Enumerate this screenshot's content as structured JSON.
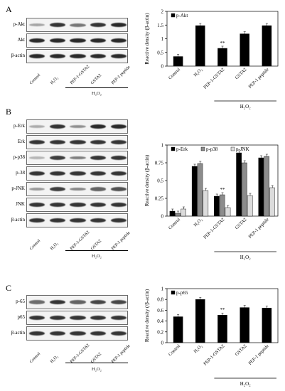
{
  "panels": [
    {
      "letter": "A",
      "blots": [
        {
          "label": "p-Akt",
          "intensity": [
            0.25,
            0.85,
            0.5,
            0.85,
            0.9
          ]
        },
        {
          "label": "Akt",
          "intensity": [
            0.9,
            0.9,
            0.9,
            0.9,
            0.9
          ]
        },
        {
          "label": "β-actin",
          "intensity": [
            0.9,
            0.9,
            0.9,
            0.9,
            0.9
          ]
        }
      ],
      "lanes": [
        "Control",
        "H₂O₂",
        "PEP-1-GSTA2",
        "GSTA2",
        "PEP-1 peptide"
      ],
      "treatment": "H₂O₂"
    },
    {
      "letter": "B",
      "blots": [
        {
          "label": "p-Erk",
          "intensity": [
            0.2,
            0.85,
            0.35,
            0.9,
            0.9
          ]
        },
        {
          "label": "Erk",
          "intensity": [
            0.85,
            0.85,
            0.85,
            0.85,
            0.85
          ]
        },
        {
          "label": "p-p38",
          "intensity": [
            0.15,
            0.8,
            0.45,
            0.85,
            0.85
          ]
        },
        {
          "label": "p-38",
          "intensity": [
            0.85,
            0.85,
            0.85,
            0.85,
            0.85
          ]
        },
        {
          "label": "p-JNK",
          "intensity": [
            0.3,
            0.8,
            0.4,
            0.6,
            0.7
          ]
        },
        {
          "label": "JNK",
          "intensity": [
            0.85,
            0.85,
            0.85,
            0.85,
            0.85
          ]
        },
        {
          "label": "β-actin",
          "intensity": [
            0.85,
            0.85,
            0.85,
            0.85,
            0.85
          ]
        }
      ],
      "lanes": [
        "Control",
        "H₂O₂",
        "PEP-1-GSTA2",
        "GSTA2",
        "PEP-1 peptide"
      ],
      "treatment": "H₂O₂"
    },
    {
      "letter": "C",
      "blots": [
        {
          "label": "p-65",
          "intensity": [
            0.55,
            0.85,
            0.6,
            0.75,
            0.75
          ]
        },
        {
          "label": "p65",
          "intensity": [
            0.85,
            0.85,
            0.85,
            0.85,
            0.85
          ]
        },
        {
          "label": "β-actin",
          "intensity": [
            0.85,
            0.85,
            0.85,
            0.85,
            0.85
          ]
        }
      ],
      "lanes": [
        "Control",
        "H₂O₂",
        "PEP-1-GSTA2",
        "GSTA2",
        "PEP-1 peptide"
      ],
      "treatment": "H₂O₂"
    }
  ],
  "chart_data": [
    {
      "type": "bar",
      "categories": [
        "Control",
        "H₂O₂",
        "PEP-1-GSTA2",
        "GSTA2",
        "PEP-1 peptide"
      ],
      "series": [
        {
          "name": "p-Akt",
          "values": [
            0.35,
            1.48,
            0.65,
            1.18,
            1.48
          ],
          "color": "#000000"
        }
      ],
      "ylabel": "Reactive density (β-actin)",
      "ylim": [
        0,
        2
      ],
      "yticks": [
        "0",
        "0.5",
        "1",
        "1.5",
        "2"
      ],
      "legend": "top-left",
      "annotations": [
        {
          "category": "PEP-1-GSTA2",
          "text": "**"
        }
      ],
      "treatment": "H₂O₂"
    },
    {
      "type": "bar",
      "categories": [
        "Control",
        "H₂O₂",
        "PEP-1-GSTA2",
        "GSTA2",
        "PEP-1 peptide"
      ],
      "series": [
        {
          "name": "p-Erk",
          "values": [
            0.07,
            0.7,
            0.28,
            0.89,
            0.82
          ],
          "color": "#000000"
        },
        {
          "name": "p-p38",
          "values": [
            0.04,
            0.74,
            0.3,
            0.75,
            0.84
          ],
          "color": "#8c8c8c"
        },
        {
          "name": "p-JNK",
          "values": [
            0.1,
            0.36,
            0.12,
            0.29,
            0.4
          ],
          "color": "#dcdcdc"
        }
      ],
      "ylabel": "Reactive density (β-actin)",
      "ylim": [
        0,
        1
      ],
      "yticks": [
        "0",
        "0.25",
        "0.5",
        "0.75",
        "1"
      ],
      "legend": "top",
      "annotations": [
        {
          "category": "PEP-1-GSTA2",
          "text": "**"
        }
      ],
      "treatment": "H₂O₂"
    },
    {
      "type": "bar",
      "categories": [
        "Control",
        "H₂O₂",
        "PEP-1-GSTA2",
        "GSTA2",
        "PEP-1 peptide"
      ],
      "series": [
        {
          "name": "p-p65",
          "values": [
            0.48,
            0.8,
            0.51,
            0.65,
            0.64
          ],
          "color": "#000000"
        }
      ],
      "ylabel": "Reactive density (/β-actin)",
      "ylim": [
        0,
        1
      ],
      "yticks": [
        "0",
        "0.2",
        "0.4",
        "0.6",
        "0.8",
        "1"
      ],
      "legend": "top-left",
      "annotations": [
        {
          "category": "PEP-1-GSTA2",
          "text": "**"
        }
      ],
      "treatment": "H₂O₂"
    }
  ]
}
